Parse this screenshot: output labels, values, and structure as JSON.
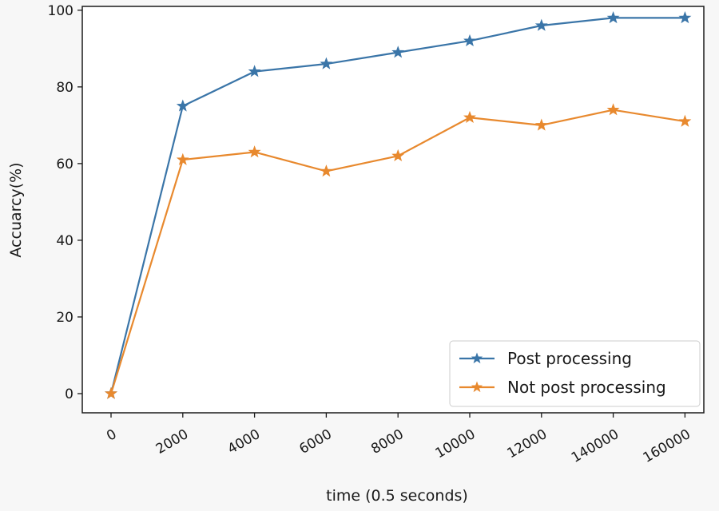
{
  "chart_data": {
    "type": "line",
    "title": "",
    "xlabel": "time (0.5 seconds)",
    "ylabel": "Accuarcy(%)",
    "x_tick_labels": [
      "0",
      "2000",
      "4000",
      "6000",
      "8000",
      "10000",
      "12000",
      "140000",
      "160000"
    ],
    "y_ticks": [
      0,
      20,
      40,
      60,
      80,
      100
    ],
    "ylim": [
      -5,
      101
    ],
    "grid": false,
    "legend_position": "lower-right",
    "marker": "star",
    "series": [
      {
        "name": "Post processing",
        "color": "#3a75a8",
        "values": [
          0,
          75,
          84,
          86,
          89,
          92,
          96,
          98,
          98
        ]
      },
      {
        "name": "Not post processing",
        "color": "#e8892e",
        "values": [
          0,
          61,
          63,
          58,
          62,
          72,
          70,
          74,
          71
        ]
      }
    ]
  }
}
